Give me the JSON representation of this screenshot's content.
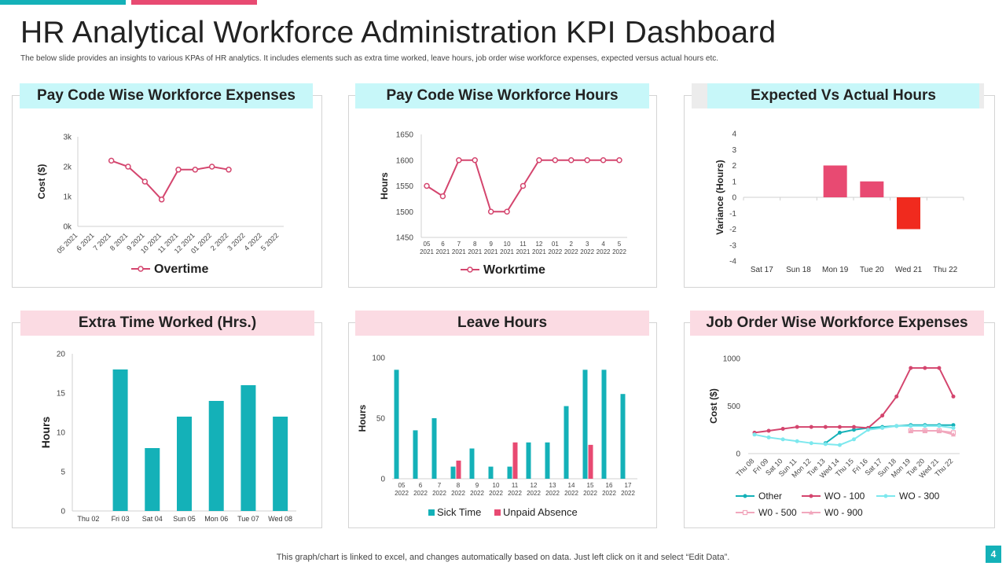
{
  "page": {
    "title": "HR Analytical Workforce Administration KPI Dashboard",
    "subtitle": "The below slide provides an insights to various KPAs of HR analytics. It includes elements such as extra time  worked, leave hours, job order wise workforce expenses, expected versus actual hours etc.",
    "footer": "This graph/chart is linked to excel,  and changes automatically based on data. Just left click on it and select “Edit Data”.",
    "page_number": "4"
  },
  "colors": {
    "teal": "#14b1b8",
    "pink": "#e84a72",
    "red": "#f02a1e",
    "line_pink": "#d4456e",
    "cyan_light": "#7de8ee",
    "pink_light": "#f1a7bd",
    "cyan_bg": "#c7f7f9",
    "pink_bg": "#fbdbe3"
  },
  "chart_data": [
    {
      "id": "c1",
      "type": "line",
      "title": "Pay Code Wise Workforce Expenses",
      "xlabel": "",
      "ylabel": "Cost ($)",
      "ylim": [
        0,
        3000
      ],
      "yticks": [
        0,
        1000,
        2000,
        3000
      ],
      "ytick_labels": [
        "0k",
        "1k",
        "2k",
        "3k"
      ],
      "categories": [
        "05 2021",
        "6 2021",
        "7 2021",
        "8 2021",
        "9 2021",
        "10 2021",
        "11 2021",
        "12 2021",
        "01 2022",
        "2 2022",
        "3 2022",
        "4 2022",
        "5 2022"
      ],
      "series": [
        {
          "name": "Overtime",
          "values": [
            null,
            null,
            2200,
            2000,
            1500,
            900,
            1900,
            1900,
            2000,
            1900,
            null,
            null,
            null
          ]
        }
      ]
    },
    {
      "id": "c2",
      "type": "line",
      "title": "Pay Code Wise Workforce Hours",
      "xlabel": "",
      "ylabel": "Hours",
      "ylim": [
        1450,
        1650
      ],
      "yticks": [
        1450,
        1500,
        1550,
        1600,
        1650
      ],
      "categories": [
        "05 2021",
        "6 2021",
        "7 2021",
        "8 2021",
        "9 2021",
        "10 2021",
        "11 2021",
        "12 2021",
        "01 2022",
        "2 2022",
        "3 2022",
        "4 2022",
        "5 2022"
      ],
      "series": [
        {
          "name": "Workrtime",
          "values": [
            1550,
            1530,
            1600,
            1600,
            1500,
            1500,
            1550,
            1600,
            1600,
            1600,
            1600,
            1600,
            1600
          ]
        }
      ]
    },
    {
      "id": "c3",
      "type": "bar",
      "title": "Expected Vs Actual Hours",
      "xlabel": "",
      "ylabel": "Variance (Hours)",
      "ylim": [
        -4,
        4
      ],
      "yticks": [
        -4,
        -3,
        -2,
        -1,
        0,
        1,
        2,
        3,
        4
      ],
      "categories": [
        "Sat 17",
        "Sun 18",
        "Mon 19",
        "Tue 20",
        "Wed 21",
        "Thu 22"
      ],
      "values": [
        0,
        0,
        2,
        1,
        -2,
        0
      ]
    },
    {
      "id": "c4",
      "type": "bar",
      "title": "Extra Time Worked (Hrs.)",
      "xlabel": "",
      "ylabel": "Hours",
      "ylim": [
        0,
        20
      ],
      "yticks": [
        0,
        5,
        10,
        15,
        20
      ],
      "categories": [
        "Thu 02",
        "Fri 03",
        "Sat 04",
        "Sun 05",
        "Mon 06",
        "Tue 07",
        "Wed 08"
      ],
      "values": [
        0,
        18,
        8,
        12,
        14,
        16,
        12
      ]
    },
    {
      "id": "c5",
      "type": "bar",
      "title": "Leave Hours",
      "xlabel": "",
      "ylabel": "Hours",
      "ylim": [
        0,
        100
      ],
      "yticks": [
        0,
        50,
        100
      ],
      "categories": [
        "05 2022",
        "6 2022",
        "7 2022",
        "8 2022",
        "9 2022",
        "10 2022",
        "11 2022",
        "12 2022",
        "13 2022",
        "14 2022",
        "15 2022",
        "16 2022",
        "17 2022"
      ],
      "series": [
        {
          "name": "Sick Time",
          "values": [
            90,
            40,
            50,
            10,
            25,
            10,
            10,
            30,
            30,
            60,
            90,
            90,
            70
          ]
        },
        {
          "name": "Unpaid Absence",
          "values": [
            0,
            0,
            0,
            15,
            0,
            0,
            30,
            0,
            0,
            0,
            28,
            0,
            0
          ]
        }
      ]
    },
    {
      "id": "c6",
      "type": "line",
      "title": "Job Order Wise Workforce Expenses",
      "xlabel": "",
      "ylabel": "Cost ($)",
      "ylim": [
        0,
        1000
      ],
      "yticks": [
        0,
        500,
        1000
      ],
      "categories": [
        "Thu 08",
        "Fri 09",
        "Sat 10",
        "Sun 11",
        "Mon 12",
        "Tue 13",
        "Wed 14",
        "Thu 15",
        "Fri 16",
        "Sat 17",
        "Sun 18",
        "Mon 19",
        "Tue 20",
        "Wed 21",
        "Thu 22"
      ],
      "series": [
        {
          "name": "Other",
          "values": [
            null,
            null,
            null,
            null,
            null,
            110,
            220,
            250,
            270,
            280,
            290,
            300,
            300,
            300,
            300
          ]
        },
        {
          "name": "WO - 100",
          "values": [
            220,
            240,
            260,
            280,
            280,
            280,
            280,
            280,
            270,
            400,
            600,
            900,
            900,
            900,
            600
          ]
        },
        {
          "name": "WO - 300",
          "values": [
            200,
            170,
            150,
            130,
            110,
            100,
            90,
            150,
            250,
            270,
            290,
            290,
            290,
            290,
            270
          ]
        },
        {
          "name": "W0 - 500",
          "values": [
            null,
            null,
            null,
            null,
            null,
            null,
            null,
            null,
            null,
            null,
            null,
            240,
            240,
            240,
            220
          ]
        },
        {
          "name": "W0 - 900",
          "values": [
            null,
            null,
            null,
            null,
            null,
            null,
            null,
            null,
            null,
            null,
            null,
            240,
            240,
            240,
            200
          ]
        }
      ]
    }
  ]
}
